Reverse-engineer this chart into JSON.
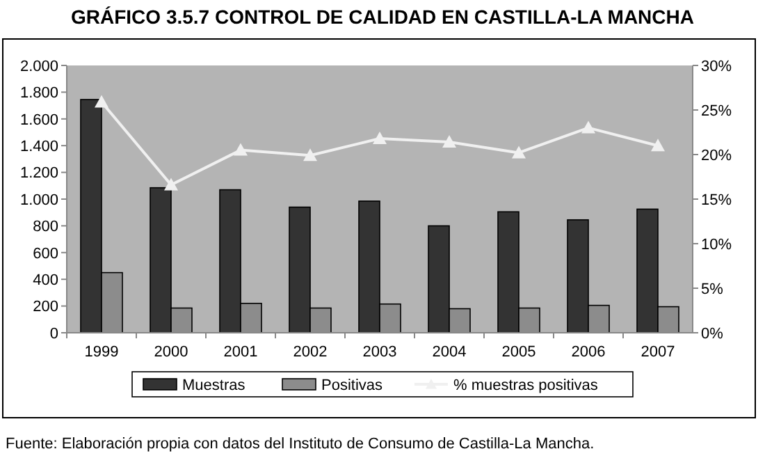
{
  "chart_data": {
    "type": "bar",
    "title": "GRÁFICO 3.5.7 CONTROL DE CALIDAD EN CASTILLA-LA MANCHA",
    "categories": [
      "1999",
      "2000",
      "2001",
      "2002",
      "2003",
      "2004",
      "2005",
      "2006",
      "2007"
    ],
    "series": [
      {
        "name": "Muestras",
        "color": "#333333",
        "values": [
          1745,
          1085,
          1070,
          940,
          985,
          800,
          905,
          845,
          925
        ]
      },
      {
        "name": "Positivas",
        "color": "#8c8c8c",
        "values": [
          450,
          185,
          220,
          185,
          215,
          180,
          185,
          205,
          195
        ]
      },
      {
        "name": "% muestras positivas",
        "type": "line",
        "axis": "y2",
        "color": "#f0f0f0",
        "marker": "triangle",
        "values": [
          25.9,
          16.6,
          20.5,
          19.9,
          21.8,
          21.4,
          20.2,
          23.0,
          21.0
        ]
      }
    ],
    "ylim": [
      0,
      2000
    ],
    "yticks": [
      0,
      200,
      400,
      600,
      800,
      {
        "value": 1000,
        "label": "1.000"
      },
      {
        "value": 1200,
        "label": "1.200"
      },
      {
        "value": 1400,
        "label": "1.400"
      },
      {
        "value": 1600,
        "label": "1.600"
      },
      {
        "value": 1800,
        "label": "1.800"
      },
      {
        "value": 2000,
        "label": "2.000"
      }
    ],
    "y2lim": [
      0,
      30
    ],
    "y2ticks": [
      {
        "value": 0,
        "label": "0%"
      },
      {
        "value": 5,
        "label": "5%"
      },
      {
        "value": 10,
        "label": "10%"
      },
      {
        "value": 15,
        "label": "15%"
      },
      {
        "value": 20,
        "label": "20%"
      },
      {
        "value": 25,
        "label": "25%"
      },
      {
        "value": 30,
        "label": "30%"
      }
    ],
    "legend": "bottom",
    "grid": false,
    "annotations": [
      "Fuente: Elaboración propia con datos del Instituto de Consumo de Castilla-La Mancha."
    ]
  }
}
